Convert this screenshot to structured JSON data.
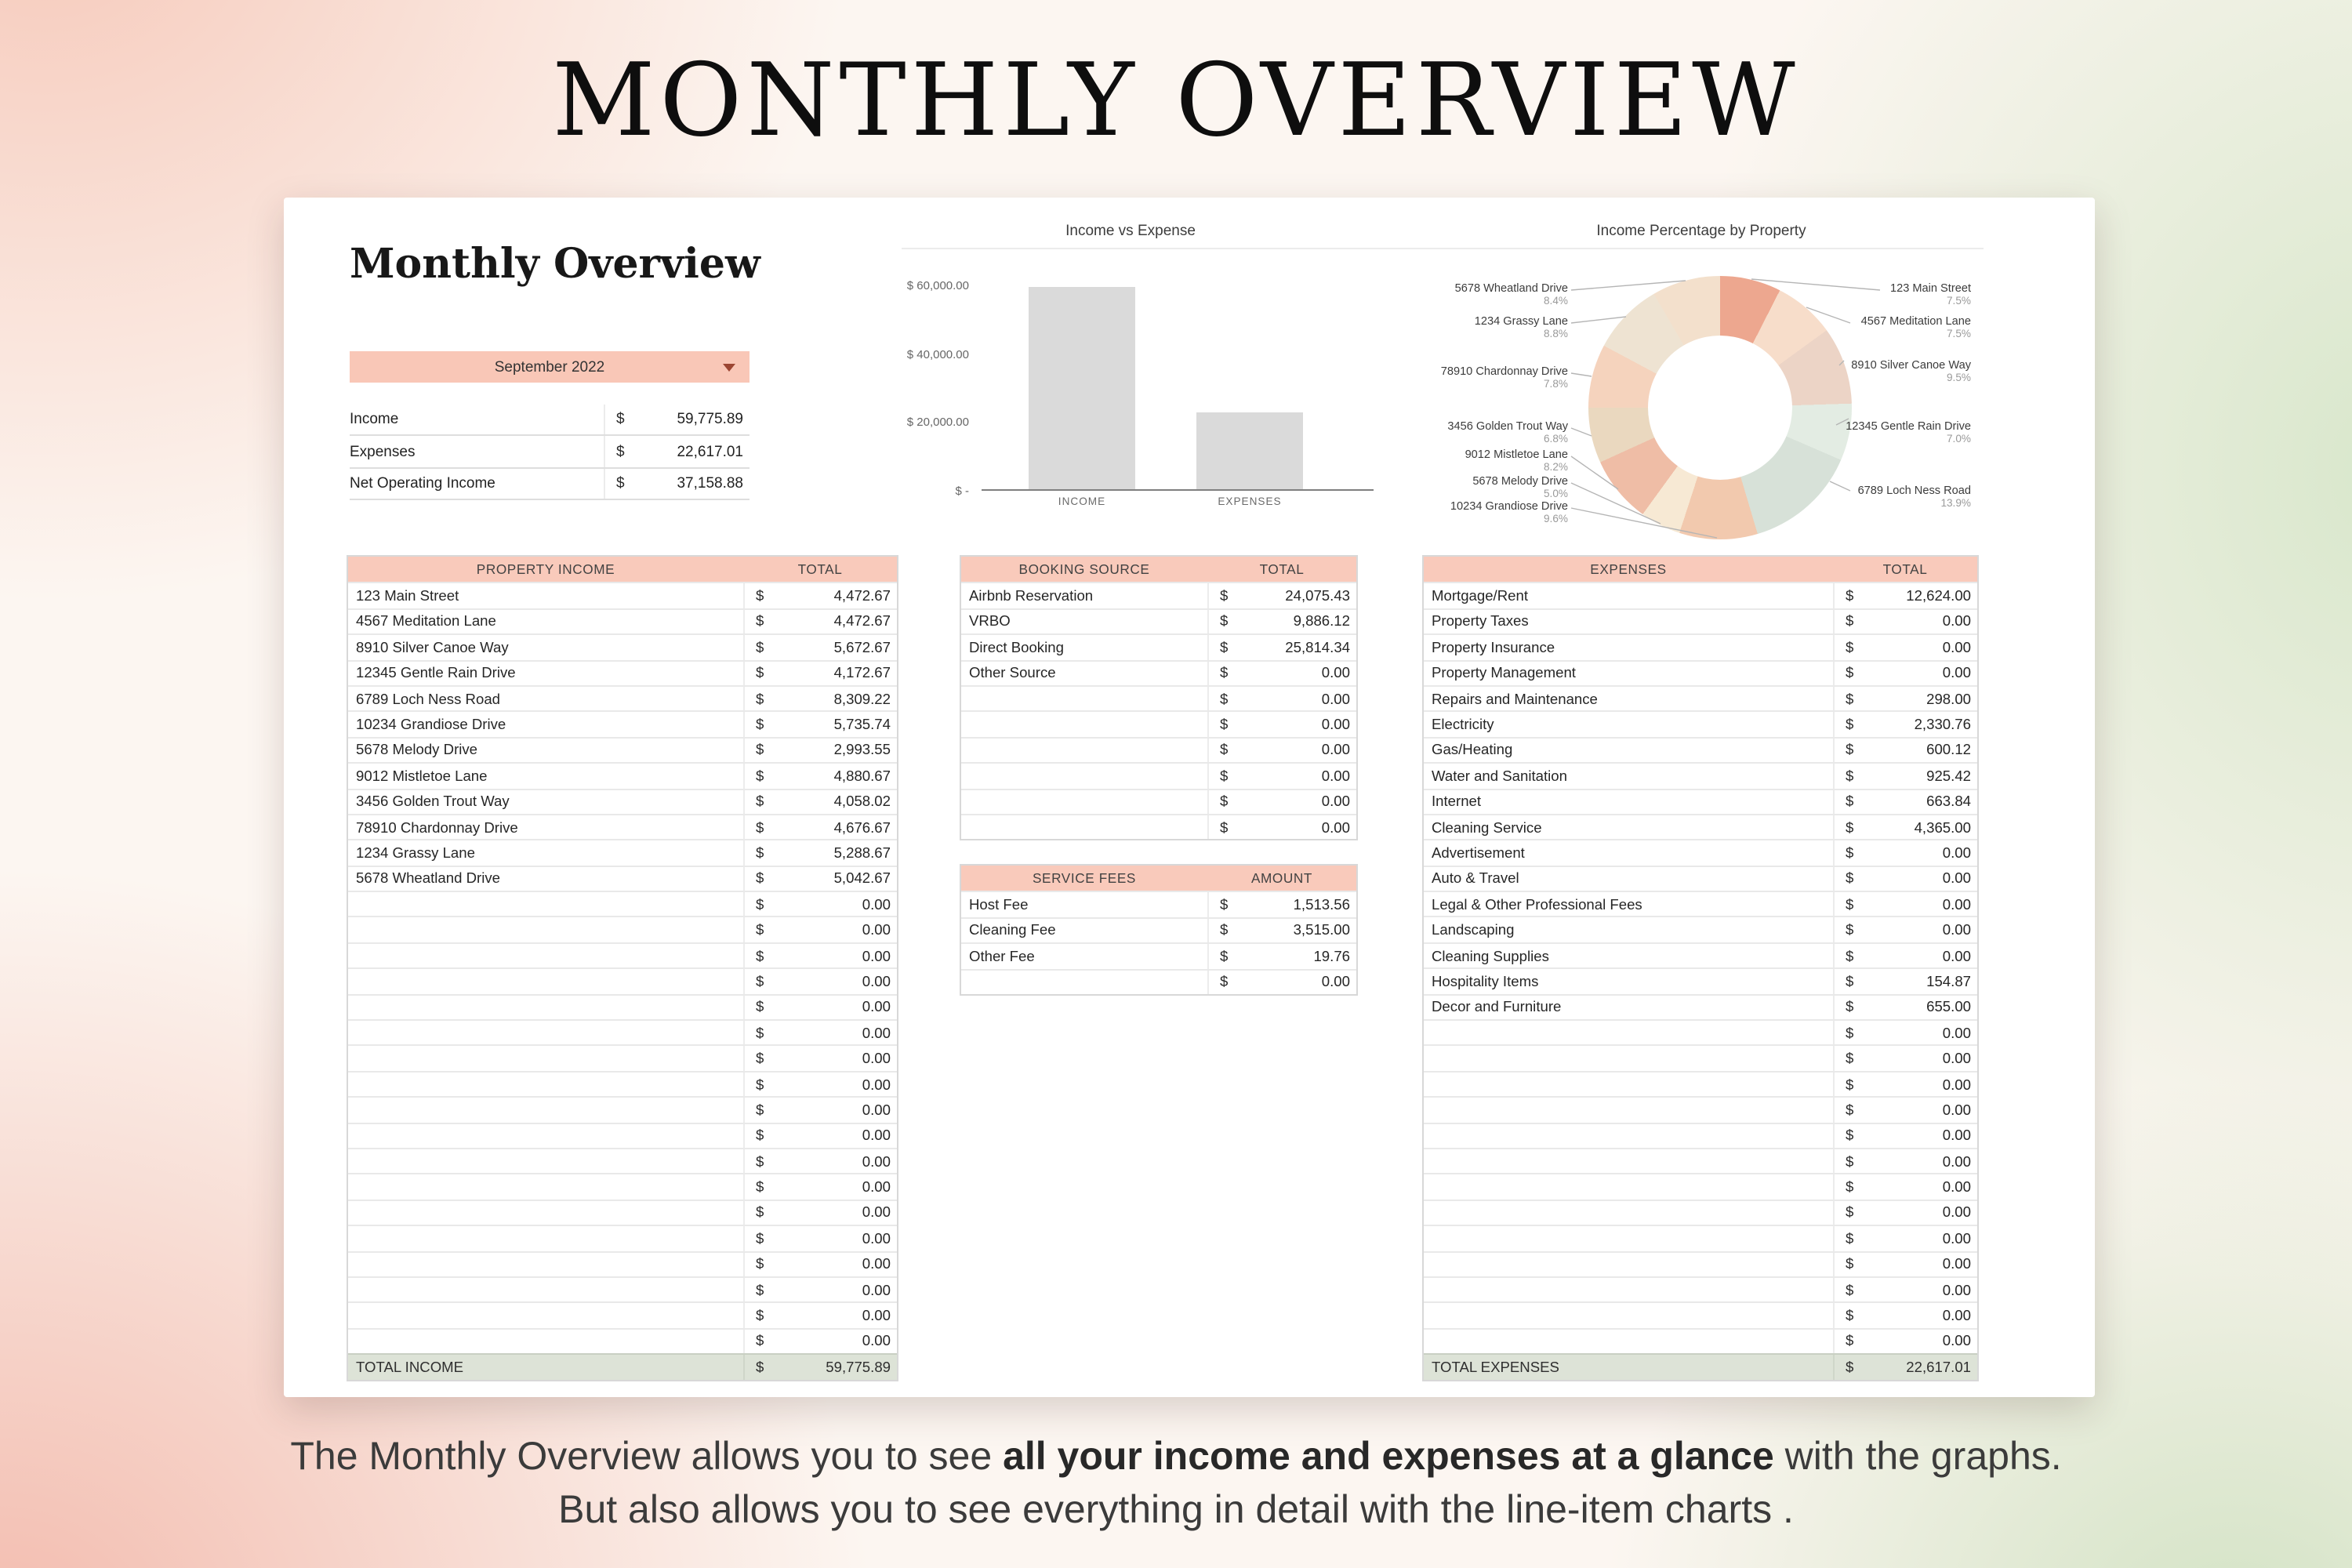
{
  "page": {
    "title": "MONTHLY OVERVIEW",
    "caption_line1_part1": "The Monthly Overview allows you to see ",
    "caption_line1_bold": "all your income and expenses at a glance",
    "caption_line1_part2": " with the graphs.",
    "caption_line2": "But also allows you to see everything in detail with the line-item charts ."
  },
  "sheet": {
    "heading": "Monthly Overview",
    "month_selector": {
      "value": "September 2022"
    },
    "summary": {
      "currency": "$",
      "rows": [
        {
          "label": "Income",
          "value": "59,775.89"
        },
        {
          "label": "Expenses",
          "value": "22,617.01"
        },
        {
          "label": "Net Operating Income",
          "value": "37,158.88"
        }
      ]
    },
    "property_income": {
      "header": {
        "name": "PROPERTY INCOME",
        "total": "TOTAL"
      },
      "currency": "$",
      "rows": [
        {
          "name": "123 Main Street",
          "amount": "4,472.67"
        },
        {
          "name": "4567 Meditation Lane",
          "amount": "4,472.67"
        },
        {
          "name": "8910 Silver Canoe Way",
          "amount": "5,672.67"
        },
        {
          "name": "12345 Gentle Rain Drive",
          "amount": "4,172.67"
        },
        {
          "name": "6789 Loch Ness Road",
          "amount": "8,309.22"
        },
        {
          "name": "10234 Grandiose Drive",
          "amount": "5,735.74"
        },
        {
          "name": "5678 Melody Drive",
          "amount": "2,993.55"
        },
        {
          "name": "9012 Mistletoe Lane",
          "amount": "4,880.67"
        },
        {
          "name": "3456 Golden Trout Way",
          "amount": "4,058.02"
        },
        {
          "name": "78910 Chardonnay Drive",
          "amount": "4,676.67"
        },
        {
          "name": "1234 Grassy Lane",
          "amount": "5,288.67"
        },
        {
          "name": "5678 Wheatland Drive",
          "amount": "5,042.67"
        },
        {
          "name": "",
          "amount": "0.00"
        },
        {
          "name": "",
          "amount": "0.00"
        },
        {
          "name": "",
          "amount": "0.00"
        },
        {
          "name": "",
          "amount": "0.00"
        },
        {
          "name": "",
          "amount": "0.00"
        },
        {
          "name": "",
          "amount": "0.00"
        },
        {
          "name": "",
          "amount": "0.00"
        },
        {
          "name": "",
          "amount": "0.00"
        },
        {
          "name": "",
          "amount": "0.00"
        },
        {
          "name": "",
          "amount": "0.00"
        },
        {
          "name": "",
          "amount": "0.00"
        },
        {
          "name": "",
          "amount": "0.00"
        },
        {
          "name": "",
          "amount": "0.00"
        },
        {
          "name": "",
          "amount": "0.00"
        },
        {
          "name": "",
          "amount": "0.00"
        },
        {
          "name": "",
          "amount": "0.00"
        },
        {
          "name": "",
          "amount": "0.00"
        },
        {
          "name": "",
          "amount": "0.00"
        }
      ],
      "footer": {
        "label": "TOTAL INCOME",
        "value": "59,775.89"
      }
    },
    "booking_source": {
      "header": {
        "name": "BOOKING SOURCE",
        "total": "TOTAL"
      },
      "currency": "$",
      "rows": [
        {
          "name": "Airbnb Reservation",
          "amount": "24,075.43"
        },
        {
          "name": "VRBO",
          "amount": "9,886.12"
        },
        {
          "name": "Direct Booking",
          "amount": "25,814.34"
        },
        {
          "name": "Other Source",
          "amount": "0.00"
        },
        {
          "name": "",
          "amount": "0.00"
        },
        {
          "name": "",
          "amount": "0.00"
        },
        {
          "name": "",
          "amount": "0.00"
        },
        {
          "name": "",
          "amount": "0.00"
        },
        {
          "name": "",
          "amount": "0.00"
        },
        {
          "name": "",
          "amount": "0.00"
        }
      ]
    },
    "service_fees": {
      "header": {
        "name": "SERVICE FEES",
        "total": "AMOUNT"
      },
      "currency": "$",
      "rows": [
        {
          "name": "Host Fee",
          "amount": "1,513.56"
        },
        {
          "name": "Cleaning Fee",
          "amount": "3,515.00"
        },
        {
          "name": "Other Fee",
          "amount": "19.76"
        },
        {
          "name": "",
          "amount": "0.00"
        }
      ]
    },
    "expenses": {
      "header": {
        "name": "EXPENSES",
        "total": "TOTAL"
      },
      "currency": "$",
      "rows": [
        {
          "name": "Mortgage/Rent",
          "amount": "12,624.00"
        },
        {
          "name": "Property Taxes",
          "amount": "0.00"
        },
        {
          "name": "Property Insurance",
          "amount": "0.00"
        },
        {
          "name": "Property Management",
          "amount": "0.00"
        },
        {
          "name": "Repairs and Maintenance",
          "amount": "298.00"
        },
        {
          "name": "Electricity",
          "amount": "2,330.76"
        },
        {
          "name": "Gas/Heating",
          "amount": "600.12"
        },
        {
          "name": "Water and Sanitation",
          "amount": "925.42"
        },
        {
          "name": "Internet",
          "amount": "663.84"
        },
        {
          "name": "Cleaning Service",
          "amount": "4,365.00"
        },
        {
          "name": "Advertisement",
          "amount": "0.00"
        },
        {
          "name": "Auto & Travel",
          "amount": "0.00"
        },
        {
          "name": "Legal & Other Professional Fees",
          "amount": "0.00"
        },
        {
          "name": "Landscaping",
          "amount": "0.00"
        },
        {
          "name": "Cleaning Supplies",
          "amount": "0.00"
        },
        {
          "name": "Hospitality Items",
          "amount": "154.87"
        },
        {
          "name": "Decor and Furniture",
          "amount": "655.00"
        },
        {
          "name": "",
          "amount": "0.00"
        },
        {
          "name": "",
          "amount": "0.00"
        },
        {
          "name": "",
          "amount": "0.00"
        },
        {
          "name": "",
          "amount": "0.00"
        },
        {
          "name": "",
          "amount": "0.00"
        },
        {
          "name": "",
          "amount": "0.00"
        },
        {
          "name": "",
          "amount": "0.00"
        },
        {
          "name": "",
          "amount": "0.00"
        },
        {
          "name": "",
          "amount": "0.00"
        },
        {
          "name": "",
          "amount": "0.00"
        },
        {
          "name": "",
          "amount": "0.00"
        },
        {
          "name": "",
          "amount": "0.00"
        },
        {
          "name": "",
          "amount": "0.00"
        }
      ],
      "footer": {
        "label": "TOTAL EXPENSES",
        "value": "22,617.01"
      }
    }
  },
  "chart_data": [
    {
      "type": "bar",
      "title": "Income vs Expense",
      "categories": [
        "INCOME",
        "EXPENSES"
      ],
      "values": [
        59775.89,
        22617.01
      ],
      "xlabel": "",
      "ylabel": "",
      "ylim": [
        0,
        60000
      ],
      "ytick_labels": [
        "$ 60,000.00",
        "$ 40,000.00",
        "$ 20,000.00",
        "$ -"
      ],
      "bar_color": "#dadada",
      "grid": false,
      "legend": "none"
    },
    {
      "type": "pie",
      "subtype": "donut",
      "title": "Income Percentage by Property",
      "legend": "callout-labels",
      "slices": [
        {
          "label": "123 Main Street",
          "pct": 7.5,
          "pct_label": "7.5%",
          "color": "#eda78f"
        },
        {
          "label": "4567 Meditation Lane",
          "pct": 7.5,
          "pct_label": "7.5%",
          "color": "#f7ddca"
        },
        {
          "label": "8910 Silver Canoe Way",
          "pct": 9.5,
          "pct_label": "9.5%",
          "color": "#ecd4c6"
        },
        {
          "label": "12345 Gentle Rain Drive",
          "pct": 7.0,
          "pct_label": "7.0%",
          "color": "#e3ece3"
        },
        {
          "label": "6789 Loch Ness Road",
          "pct": 13.9,
          "pct_label": "13.9%",
          "color": "#d7e1d8"
        },
        {
          "label": "10234 Grandiose Drive",
          "pct": 9.6,
          "pct_label": "9.6%",
          "color": "#f2c9ae"
        },
        {
          "label": "5678 Melody Drive",
          "pct": 5.0,
          "pct_label": "5.0%",
          "color": "#f7e9d4"
        },
        {
          "label": "9012 Mistletoe Lane",
          "pct": 8.2,
          "pct_label": "8.2%",
          "color": "#efbda6"
        },
        {
          "label": "3456 Golden Trout Way",
          "pct": 6.8,
          "pct_label": "6.8%",
          "color": "#ead8bf"
        },
        {
          "label": "78910 Chardonnay Drive",
          "pct": 7.8,
          "pct_label": "7.8%",
          "color": "#f5d3bd"
        },
        {
          "label": "1234 Grassy Lane",
          "pct": 8.8,
          "pct_label": "8.8%",
          "color": "#eee3d2"
        },
        {
          "label": "5678 Wheatland Drive",
          "pct": 8.4,
          "pct_label": "8.4%",
          "color": "#f3e0cc"
        }
      ]
    }
  ]
}
